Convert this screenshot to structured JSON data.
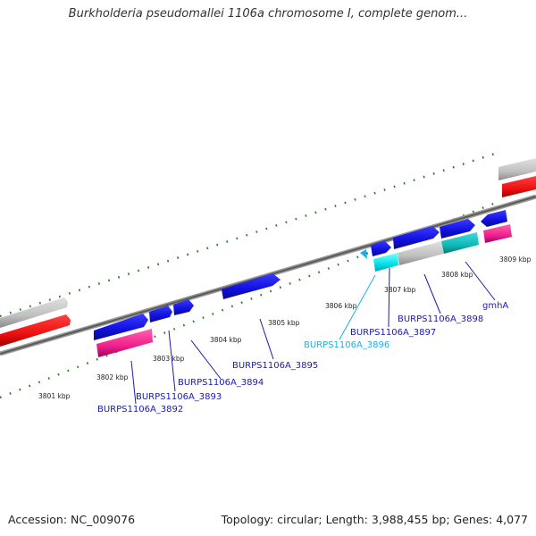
{
  "title": "Burkholderia pseudomallei 1106a chromosome I, complete genom...",
  "footer": {
    "accession": "Accession: NC_009076",
    "topology": "Topology: circular; Length: 3,988,455 bp; Genes: 4,077"
  },
  "colors": {
    "gene_blue": "#1010e0",
    "gene_blue_dark": "#0a0a9a",
    "highlight_cyan": "#00e0e8",
    "teal": "#10b8b8",
    "pink": "#f0208c",
    "red": "#ee1010",
    "gray": "#c0c0c0",
    "backbone": "#6e6e6e",
    "tick_green": "#2a7a2a",
    "label_blue": "#1a1aaa",
    "label_highlight": "#20b0e0"
  },
  "kbp_labels": [
    "3801 kbp",
    "3802 kbp",
    "3803 kbp",
    "3804 kbp",
    "3805 kbp",
    "3806 kbp",
    "3807 kbp",
    "3808 kbp",
    "3809 kbp"
  ],
  "gene_labels": [
    "BURPS1106A_3892",
    "BURPS1106A_3893",
    "BURPS1106A_3894",
    "BURPS1106A_3895",
    "BURPS1106A_3896",
    "BURPS1106A_3897",
    "BURPS1106A_3898",
    "gmhA"
  ],
  "highlighted_gene": "BURPS1106A_3896"
}
